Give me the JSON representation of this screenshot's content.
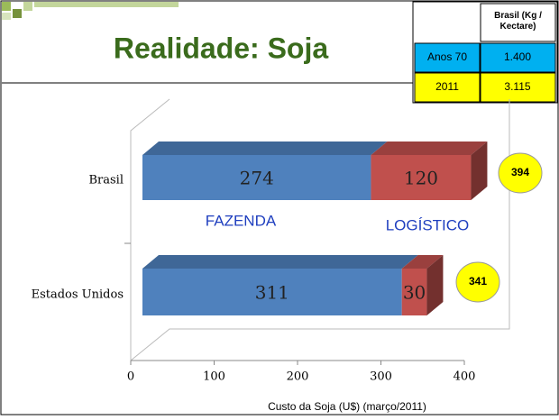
{
  "title": "Realidade: Soja",
  "table": {
    "header": "Brasil (Kg / Kectare)",
    "rows": [
      [
        "Anos 70",
        "1.400"
      ],
      [
        "2011",
        "3.115"
      ]
    ]
  },
  "chart_data": {
    "type": "bar",
    "orientation": "horizontal",
    "stacked": true,
    "categories": [
      "Brasil",
      "Estados Unidos"
    ],
    "series": [
      {
        "name": "FAZENDA",
        "color": "#4f81bd",
        "values": [
          274,
          311
        ]
      },
      {
        "name": "LOGÍSTICO",
        "color": "#c0504d",
        "values": [
          120,
          30
        ]
      }
    ],
    "totals": [
      394,
      341
    ],
    "xlim": [
      0,
      400
    ],
    "xticks": [
      0,
      100,
      200,
      300,
      400
    ],
    "xlabel": "Custo da Soja (U$) (março/2011)",
    "grid": false
  }
}
